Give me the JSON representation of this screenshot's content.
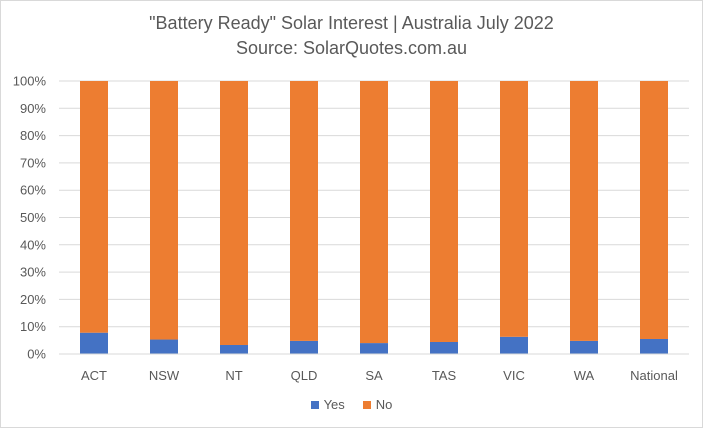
{
  "chart_data": {
    "type": "bar",
    "stacked": true,
    "title": "\"Battery Ready\" Solar Interest | Australia July 2022",
    "subtitle": "Source: SolarQuotes.com.au",
    "categories": [
      "ACT",
      "NSW",
      "NT",
      "QLD",
      "SA",
      "TAS",
      "VIC",
      "WA",
      "National"
    ],
    "series": [
      {
        "name": "Yes",
        "color": "#4472c4",
        "values": [
          7.8,
          5.3,
          3.3,
          4.8,
          4.0,
          4.4,
          6.3,
          4.8,
          5.5
        ]
      },
      {
        "name": "No",
        "color": "#ed7d31",
        "values": [
          92.2,
          94.7,
          96.7,
          95.2,
          96.0,
          95.6,
          93.7,
          95.2,
          94.5
        ]
      }
    ],
    "ylim": [
      0,
      100
    ],
    "yticks": [
      "0%",
      "10%",
      "20%",
      "30%",
      "40%",
      "50%",
      "60%",
      "70%",
      "80%",
      "90%",
      "100%"
    ],
    "grid": true,
    "legend_position": "bottom"
  }
}
